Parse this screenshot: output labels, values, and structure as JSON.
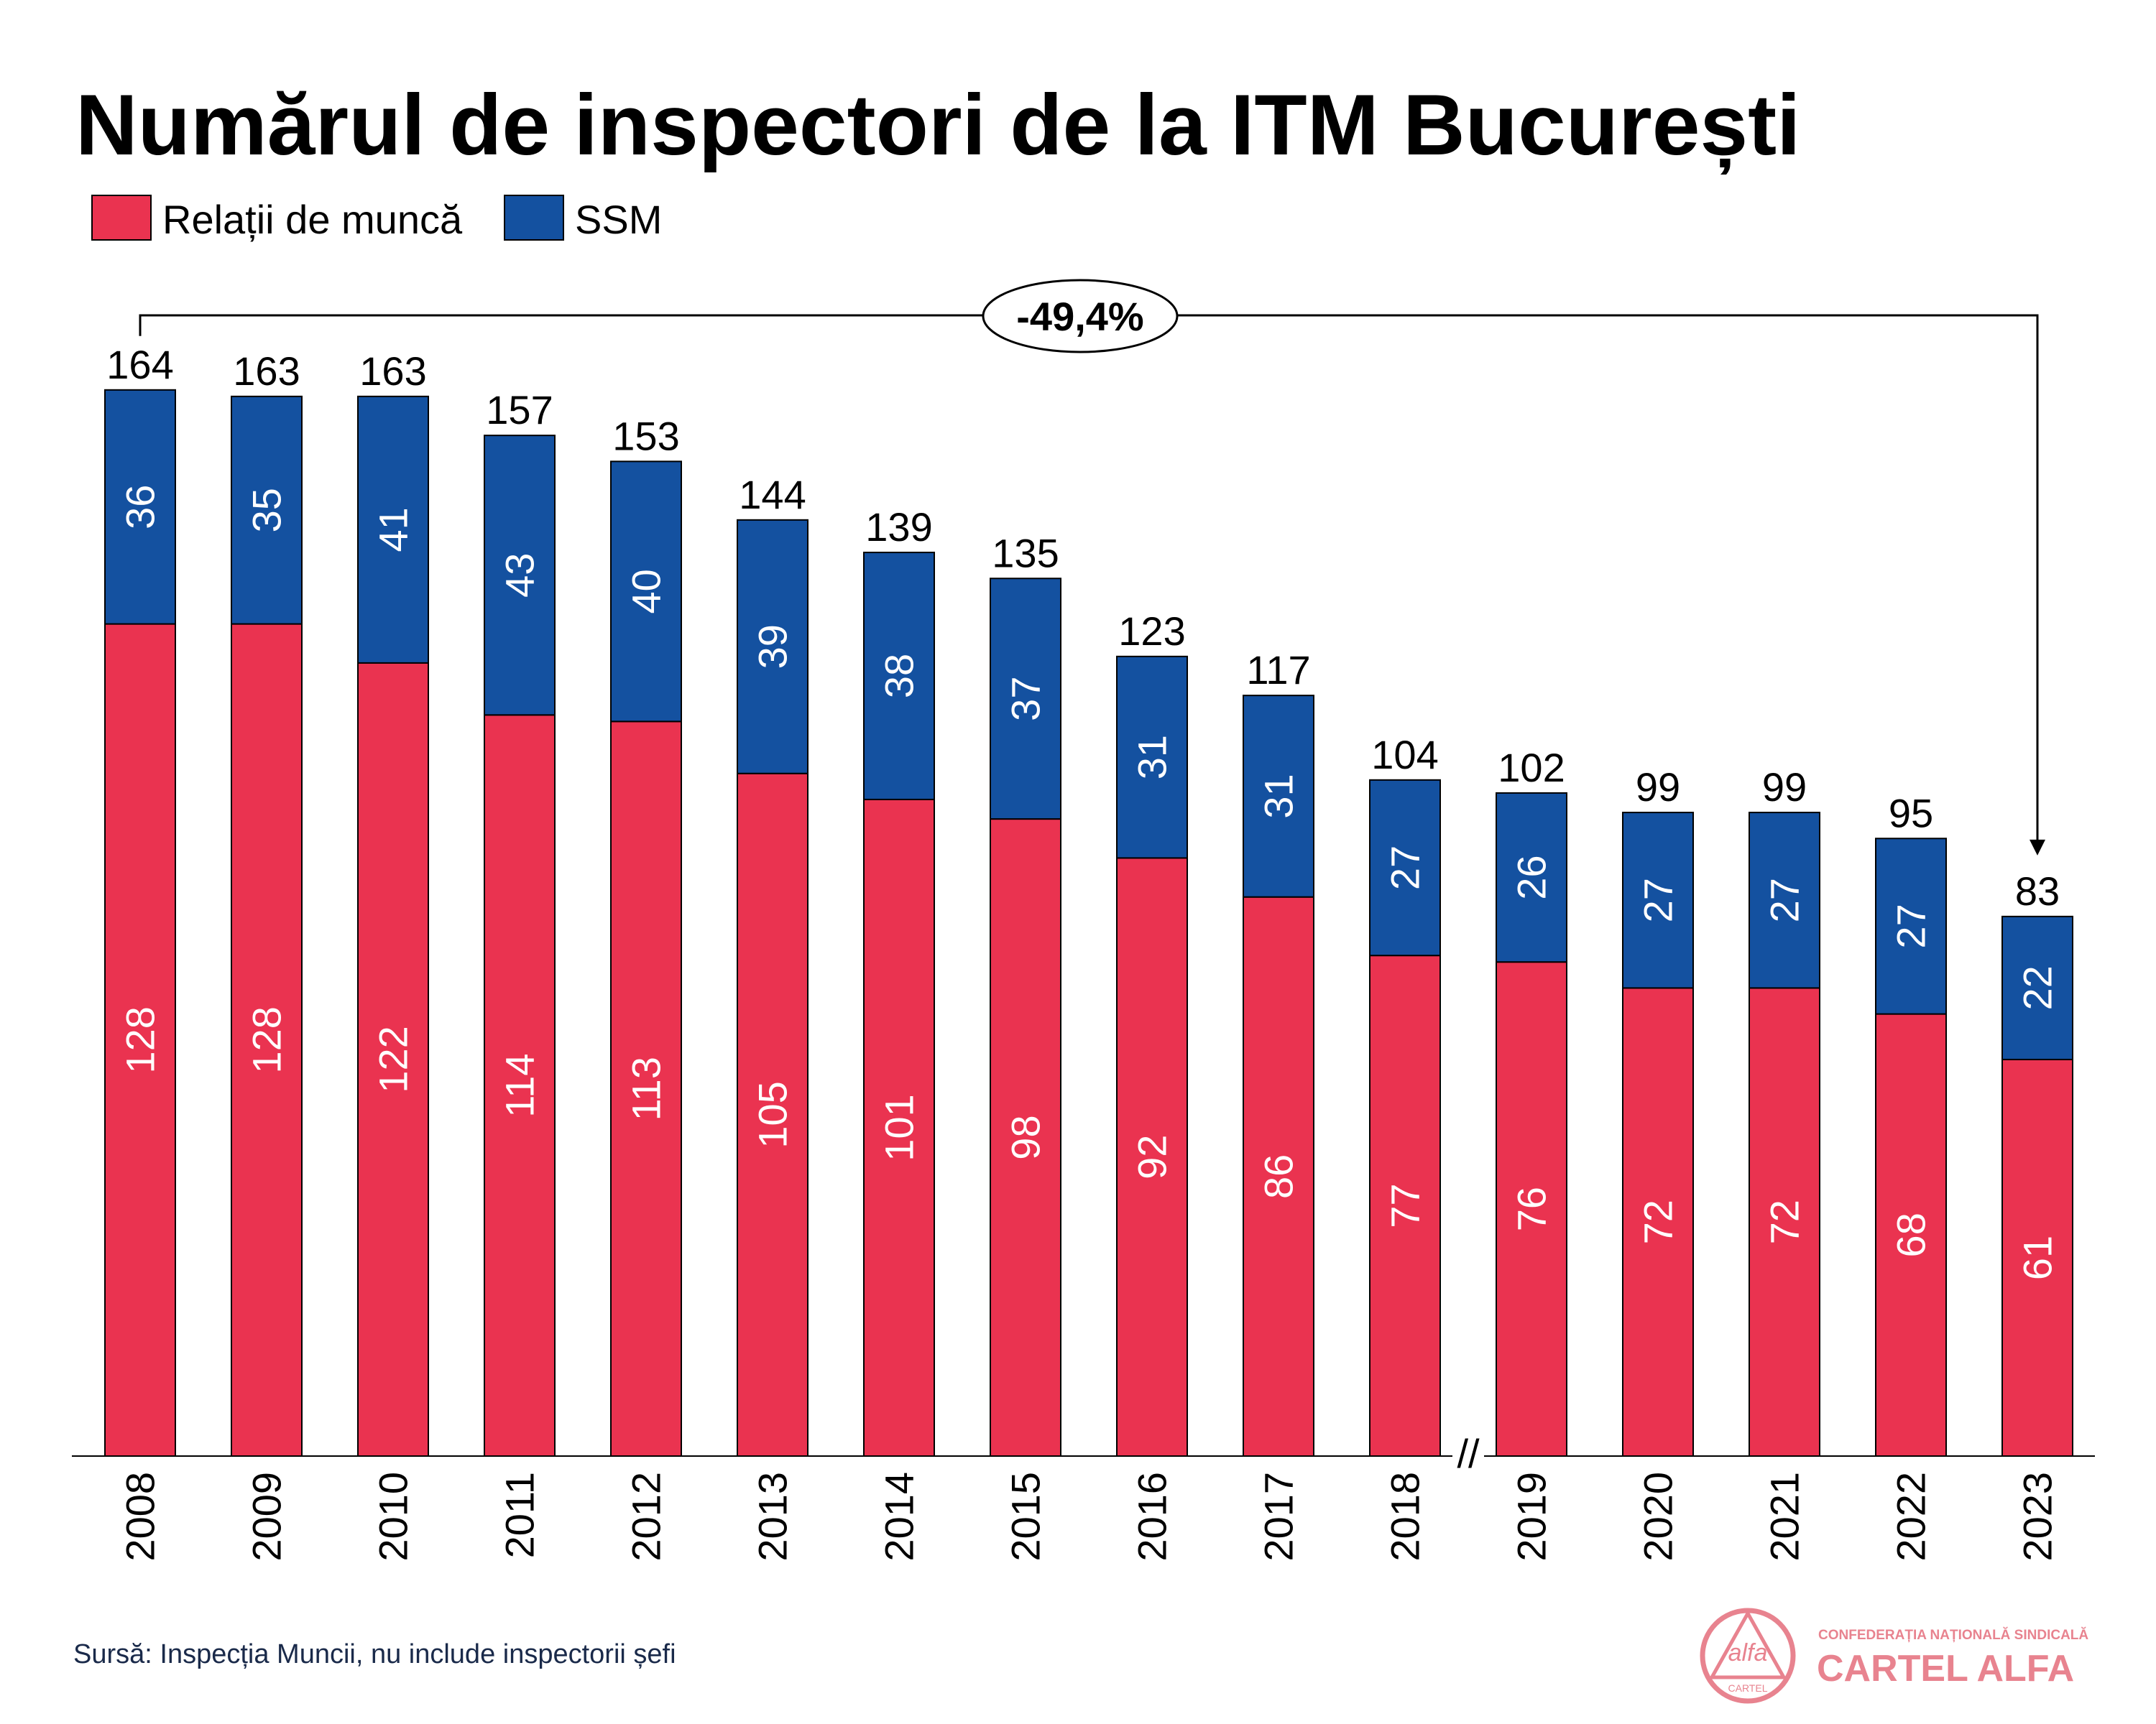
{
  "chart_data": {
    "type": "bar",
    "stacked": true,
    "title": "Numărul de inspectori de la ITM București",
    "categories": [
      "2008",
      "2009",
      "2010",
      "2011",
      "2012",
      "2013",
      "2014",
      "2015",
      "2016",
      "2017",
      "2018",
      "2019",
      "2020",
      "2021",
      "2022",
      "2023"
    ],
    "series": [
      {
        "name": "Relații de muncă",
        "color": "#ea3350",
        "values": [
          128,
          128,
          122,
          114,
          113,
          105,
          101,
          98,
          92,
          86,
          77,
          76,
          72,
          72,
          68,
          61
        ]
      },
      {
        "name": "SSM",
        "color": "#1451a0",
        "values": [
          36,
          35,
          41,
          43,
          40,
          39,
          38,
          37,
          31,
          31,
          27,
          26,
          27,
          27,
          27,
          22
        ]
      }
    ],
    "totals": [
      164,
      163,
      163,
      157,
      153,
      144,
      139,
      135,
      123,
      117,
      104,
      102,
      99,
      99,
      95,
      83
    ],
    "ylim": [
      0,
      170
    ],
    "xlabel": "",
    "ylabel": "",
    "axis_break_label": "//",
    "annotation": {
      "text": "-49,4%",
      "from": "2008",
      "to": "2023"
    },
    "source": "Sursă: Inspecția Muncii, nu include inspectorii șefi"
  },
  "logo": {
    "mark_text": "alfa",
    "mark_subtext": "CARTEL",
    "tagline": "CONFEDERAȚIA NAȚIONALĂ SINDICALĂ",
    "name": "CARTEL ALFA"
  }
}
